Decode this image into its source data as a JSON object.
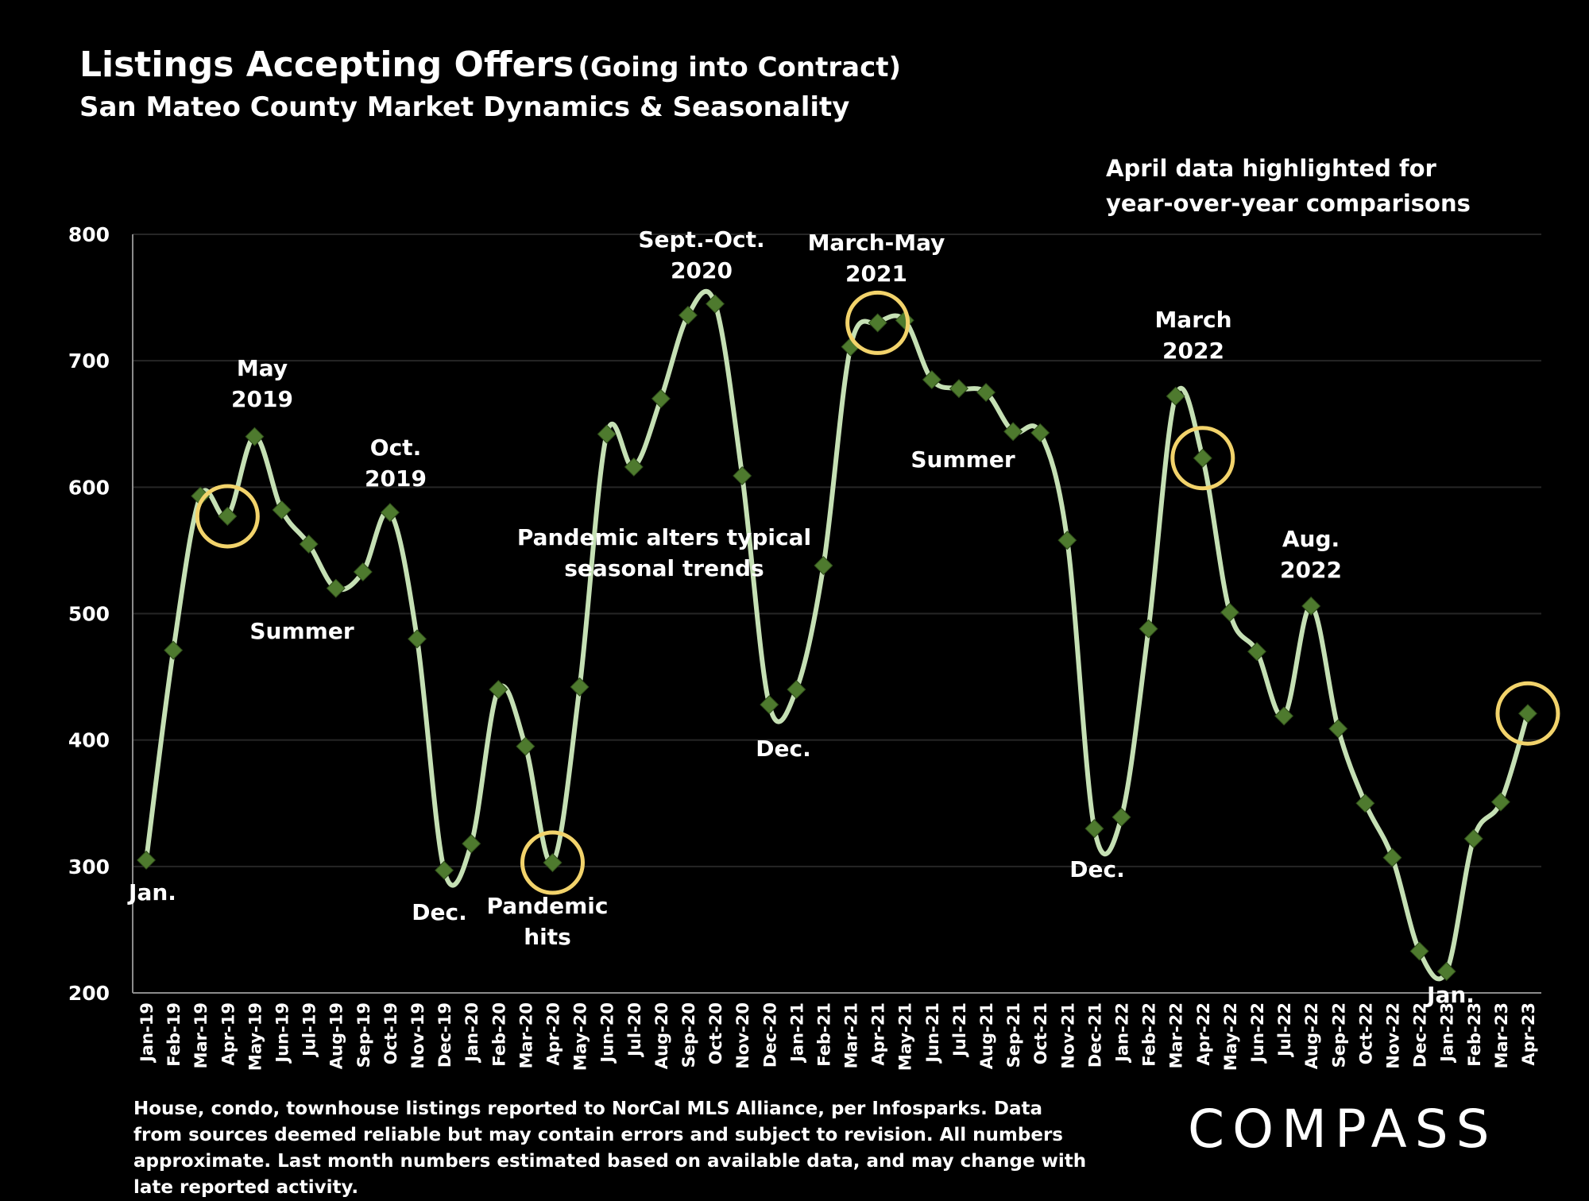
{
  "title": {
    "main": "Listings Accepting Offers",
    "paren": "(Going into Contract)",
    "subtitle": "San Mateo County Market Dynamics & Seasonality"
  },
  "highlight_note": [
    "April data highlighted for",
    "year-over-year comparisons"
  ],
  "footnote": "House, condo, townhouse listings reported to NorCal MLS Alliance, per Infosparks. Data from sources deemed reliable but may contain errors and subject to revision. All numbers approximate. Last month numbers estimated based on available data, and may change with late reported activity.",
  "brand": "COMPASS",
  "colors": {
    "background": "#000000",
    "line": "#c5e0b4",
    "marker": "#4e7a2e",
    "highlight_ring": "#f2d36b",
    "gridline": "#262626"
  },
  "chart_data": {
    "type": "line",
    "xlabel": "",
    "ylabel": "",
    "ylim": [
      200,
      800
    ],
    "yticks": [
      200,
      300,
      400,
      500,
      600,
      700,
      800
    ],
    "grid": true,
    "legend": "none",
    "categories": [
      "Jan-19",
      "Feb-19",
      "Mar-19",
      "Apr-19",
      "May-19",
      "Jun-19",
      "Jul-19",
      "Aug-19",
      "Sep-19",
      "Oct-19",
      "Nov-19",
      "Dec-19",
      "Jan-20",
      "Feb-20",
      "Mar-20",
      "Apr-20",
      "May-20",
      "Jun-20",
      "Jul-20",
      "Aug-20",
      "Sep-20",
      "Oct-20",
      "Nov-20",
      "Dec-20",
      "Jan-21",
      "Feb-21",
      "Mar-21",
      "Apr-21",
      "May-21",
      "Jun-21",
      "Jul-21",
      "Aug-21",
      "Sep-21",
      "Oct-21",
      "Nov-21",
      "Dec-21",
      "Jan-22",
      "Feb-22",
      "Mar-22",
      "Apr-22",
      "May-22",
      "Jun-22",
      "Jul-22",
      "Aug-22",
      "Sep-22",
      "Oct-22",
      "Nov-22",
      "Dec-22",
      "Jan-23",
      "Feb-23",
      "Mar-23",
      "Apr-23"
    ],
    "series": [
      {
        "values": [
          305,
          471,
          593,
          577,
          640,
          582,
          555,
          520,
          533,
          580,
          480,
          297,
          318,
          440,
          395,
          303,
          442,
          642,
          616,
          670,
          736,
          745,
          609,
          428,
          440,
          538,
          711,
          730,
          732,
          685,
          678,
          675,
          644,
          643,
          558,
          330,
          339,
          488,
          672,
          623,
          501,
          470,
          419,
          506,
          409,
          350,
          307,
          233,
          217,
          322,
          351,
          421
        ]
      }
    ],
    "highlighted_points": [
      "Apr-19",
      "Apr-20",
      "Apr-21",
      "Apr-22",
      "Apr-23"
    ],
    "annotations": [
      {
        "id": "jan-2019",
        "lines": [
          "Jan."
        ]
      },
      {
        "id": "may-2019",
        "lines": [
          "May",
          "2019"
        ]
      },
      {
        "id": "summer-2019",
        "lines": [
          "Summer"
        ]
      },
      {
        "id": "oct-2019",
        "lines": [
          "Oct.",
          "2019"
        ]
      },
      {
        "id": "dec-2019",
        "lines": [
          "Dec."
        ]
      },
      {
        "id": "pandemic-hits",
        "lines": [
          "Pandemic",
          "hits"
        ]
      },
      {
        "id": "pandemic-alters",
        "lines": [
          "Pandemic alters typical",
          "seasonal trends"
        ]
      },
      {
        "id": "sept-oct-2020",
        "lines": [
          "Sept.-Oct.",
          "2020"
        ]
      },
      {
        "id": "dec-2020",
        "lines": [
          "Dec."
        ]
      },
      {
        "id": "march-may-2021",
        "lines": [
          "March-May",
          "2021"
        ]
      },
      {
        "id": "summer-2021",
        "lines": [
          "Summer"
        ]
      },
      {
        "id": "dec-2021",
        "lines": [
          "Dec."
        ]
      },
      {
        "id": "march-2022",
        "lines": [
          "March",
          "2022"
        ]
      },
      {
        "id": "aug-2022",
        "lines": [
          "Aug.",
          "2022"
        ]
      },
      {
        "id": "jan-2023",
        "lines": [
          "Jan."
        ]
      }
    ]
  }
}
